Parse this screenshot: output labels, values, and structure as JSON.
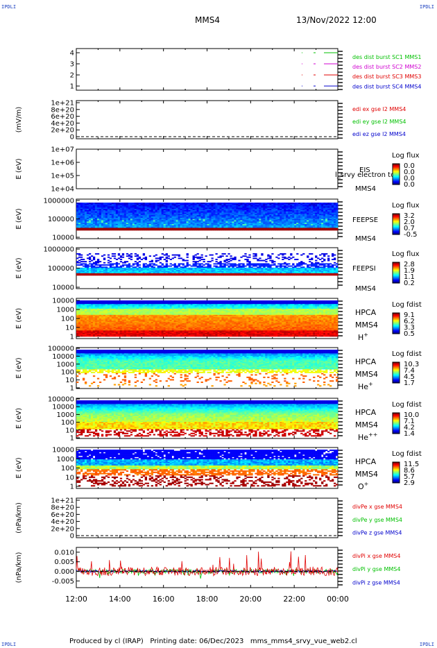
{
  "corners": {
    "tl": "IPDLI",
    "tr": "IPDLI",
    "bl": "IPDLI",
    "br": "IPDLI"
  },
  "header": {
    "spacecraft": "MMS4",
    "datetime": "13/Nov/2022 12:00"
  },
  "footer": {
    "produced": "Produced by cl (IRAP)",
    "printing": "Printing date: 06/Dec/2023",
    "file": "mms_mms4_srvy_vue_web2.cl"
  },
  "colors": {
    "red": "#e00000",
    "green": "#00c000",
    "blue": "#0000cc",
    "magenta": "#d000d0"
  },
  "chart_data": [
    {
      "type": "scatter",
      "panel": "burst",
      "yticks": [
        "4",
        "3",
        "2",
        "1"
      ],
      "series": [
        {
          "name": "des dist burst SC1 MMS1",
          "color": "#00c000"
        },
        {
          "name": "des dist burst SC2 MMS2",
          "color": "#d000d0"
        },
        {
          "name": "des dist burst SC3 MMS3",
          "color": "#e00000"
        },
        {
          "name": "des dist burst SC4 MMS4",
          "color": "#0000cc"
        }
      ]
    },
    {
      "type": "line",
      "panel": "edi",
      "ylabel": "(mV/m)",
      "yticks": [
        "1e+21",
        "8e+20",
        "6e+20",
        "4e+20",
        "2e+20",
        "0"
      ],
      "series": [
        {
          "name": "edi ex gse l2 MMS4",
          "color": "#e00000"
        },
        {
          "name": "edi ey gse l2 MMS4",
          "color": "#00c000"
        },
        {
          "name": "edi ez gse l2 MMS4",
          "color": "#0000cc"
        }
      ]
    },
    {
      "type": "heatmap",
      "panel": "eis",
      "ylabel": "E (eV)",
      "yticks": [
        "1e+07",
        "1e+06",
        "1e+05",
        "1e+04"
      ],
      "label": "EIS",
      "label2": "MMS4",
      "overlay": "l_srvy electron to",
      "colorbar": {
        "title": "Log flux",
        "ticks": [
          "0.0",
          "0.0",
          "0.0",
          "0.0"
        ]
      }
    },
    {
      "type": "heatmap",
      "panel": "feepse",
      "ylabel": "E (eV)",
      "yticks": [
        "1000000",
        "100000",
        "10000"
      ],
      "label": "FEEPSE",
      "label2": "MMS4",
      "colorbar": {
        "title": "Log flux",
        "ticks": [
          "3.2",
          "2.0",
          "0.7",
          "-0.5"
        ]
      }
    },
    {
      "type": "heatmap",
      "panel": "feepsi",
      "ylabel": "E (eV)",
      "yticks": [
        "1000000",
        "100000",
        "10000"
      ],
      "label": "FEEPSI",
      "label2": "MMS4",
      "colorbar": {
        "title": "Log flux",
        "ticks": [
          "2.8",
          "1.9",
          "1.1",
          "0.2"
        ]
      }
    },
    {
      "type": "heatmap",
      "panel": "hpca_h",
      "ylabel": "E (eV)",
      "yticks": [
        "10000",
        "1000",
        "100",
        "10",
        "1"
      ],
      "label": "HPCA",
      "label2": "MMS4",
      "species": "H",
      "sup": "+",
      "colorbar": {
        "title": "Log fdist",
        "ticks": [
          "9.1",
          "6.2",
          "3.3",
          "0.5"
        ]
      }
    },
    {
      "type": "heatmap",
      "panel": "hpca_he",
      "ylabel": "E (eV)",
      "yticks": [
        "100000",
        "10000",
        "1000",
        "100",
        "10",
        "1"
      ],
      "label": "HPCA",
      "label2": "MMS4",
      "species": "He",
      "sup": "+",
      "colorbar": {
        "title": "Log fdist",
        "ticks": [
          "10.3",
          "7.4",
          "4.5",
          "1.7"
        ]
      }
    },
    {
      "type": "heatmap",
      "panel": "hpca_hepp",
      "ylabel": "E (eV)",
      "yticks": [
        "100000",
        "10000",
        "1000",
        "100",
        "10",
        "1"
      ],
      "label": "HPCA",
      "label2": "MMS4",
      "species": "He",
      "sup": "++",
      "colorbar": {
        "title": "Log fdist",
        "ticks": [
          "10.0",
          "7.1",
          "4.2",
          "1.4"
        ]
      }
    },
    {
      "type": "heatmap",
      "panel": "hpca_o",
      "ylabel": "E (eV)",
      "yticks": [
        "10000",
        "1000",
        "100",
        "10",
        "1"
      ],
      "label": "HPCA",
      "label2": "MMS4",
      "species": "O",
      "sup": "+",
      "colorbar": {
        "title": "Log fdist",
        "ticks": [
          "11.5",
          "8.6",
          "5.7",
          "2.9"
        ]
      }
    },
    {
      "type": "line",
      "panel": "divpe",
      "ylabel": "(nPa/km)",
      "yticks": [
        "1e+21",
        "8e+20",
        "6e+20",
        "4e+20",
        "2e+20",
        "0"
      ],
      "series": [
        {
          "name": "divPe x gse MMS4",
          "color": "#e00000"
        },
        {
          "name": "divPe y gse MMS4",
          "color": "#00c000"
        },
        {
          "name": "divPe z gse MMS4",
          "color": "#0000cc"
        }
      ]
    },
    {
      "type": "line",
      "panel": "divpi",
      "ylabel": "(nPa/km)",
      "yticks": [
        "0.010",
        "0.005",
        "0.000",
        "-0.005"
      ],
      "ylim": [
        -0.0085,
        0.0125
      ],
      "series": [
        {
          "name": "divPi x gse MMS4",
          "color": "#e00000"
        },
        {
          "name": "divPi y gse MMS4",
          "color": "#00c000"
        },
        {
          "name": "divPi z gse MMS4",
          "color": "#0000cc"
        }
      ]
    }
  ],
  "xaxis": {
    "ticks": [
      "12:00",
      "14:00",
      "16:00",
      "18:00",
      "20:00",
      "22:00",
      "00:00"
    ]
  }
}
